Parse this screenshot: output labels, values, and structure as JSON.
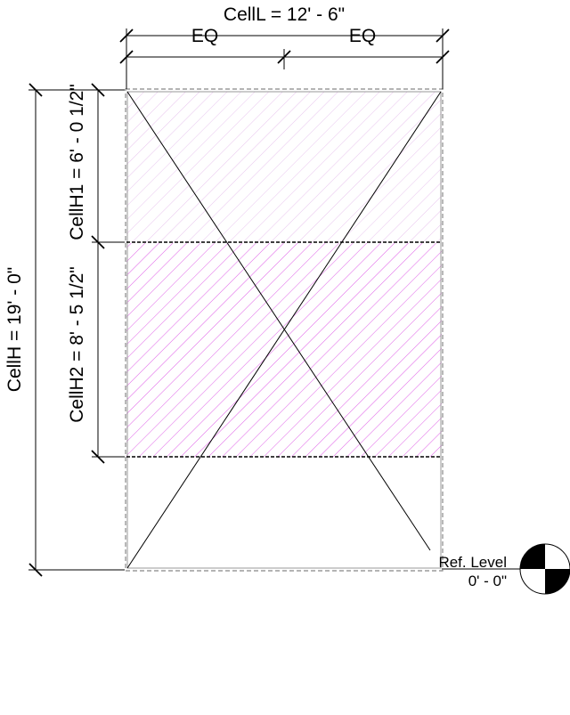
{
  "dimensions": {
    "overall_length": "CellL = 12' - 6\"",
    "eq_left": "EQ",
    "eq_right": "EQ",
    "overall_height": "CellH = 19' - 0\"",
    "cell_h2": "CellH2 = 8' - 5 1/2\"",
    "cell_h1": "CellH1 = 6' - 0 1/2\""
  },
  "level": {
    "name": "Ref. Level",
    "elevation": "0' - 0\""
  },
  "colors": {
    "line": "#000000",
    "hatch_light": "#e8c4ee",
    "hatch_strong": "#e060e8",
    "dashed_border": "#888888"
  }
}
